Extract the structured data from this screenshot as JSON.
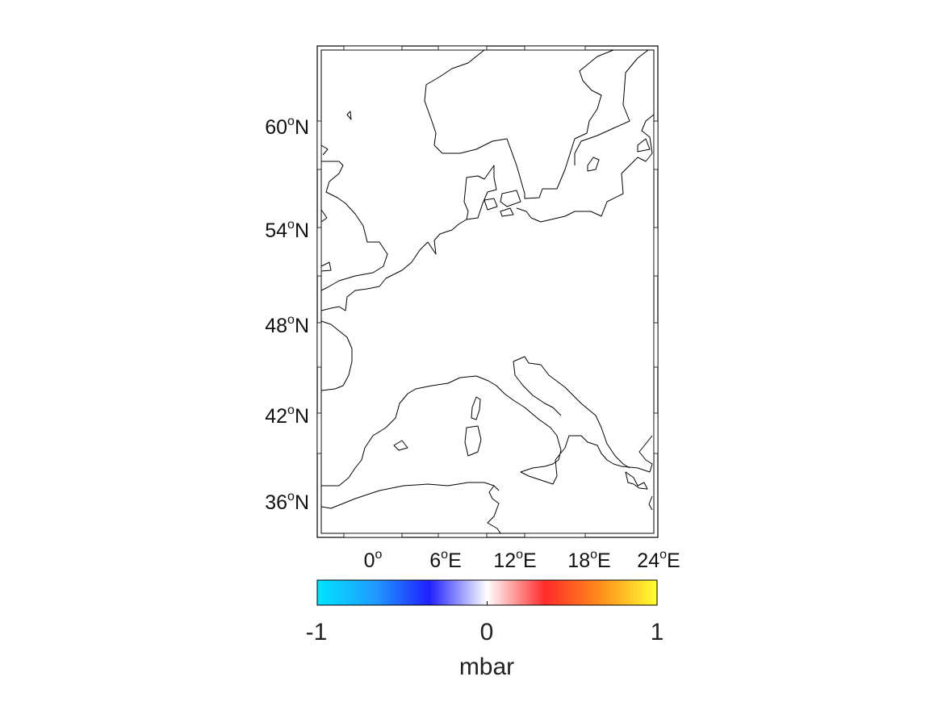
{
  "map": {
    "lat_ticks": [
      {
        "value": "60",
        "deg": "o",
        "hemi": "N"
      },
      {
        "value": "54",
        "deg": "o",
        "hemi": "N"
      },
      {
        "value": "48",
        "deg": "o",
        "hemi": "N"
      },
      {
        "value": "42",
        "deg": "o",
        "hemi": "N"
      },
      {
        "value": "36",
        "deg": "o",
        "hemi": "N"
      }
    ],
    "lon_ticks": [
      {
        "value": "0",
        "deg": "o",
        "hemi": ""
      },
      {
        "value": "6",
        "deg": "o",
        "hemi": "E"
      },
      {
        "value": "12",
        "deg": "o",
        "hemi": "E"
      },
      {
        "value": "18",
        "deg": "o",
        "hemi": "E"
      },
      {
        "value": "24",
        "deg": "o",
        "hemi": "E"
      }
    ],
    "data_field": "blank (all values zero)"
  },
  "colorbar": {
    "min_label": "-1",
    "mid_label": "0",
    "max_label": "1",
    "unit": "mbar",
    "colors": [
      "#00e5ff",
      "#1f9bff",
      "#2020ff",
      "#ffffff",
      "#ff2a2a",
      "#ff8c1a",
      "#ffff33"
    ]
  }
}
